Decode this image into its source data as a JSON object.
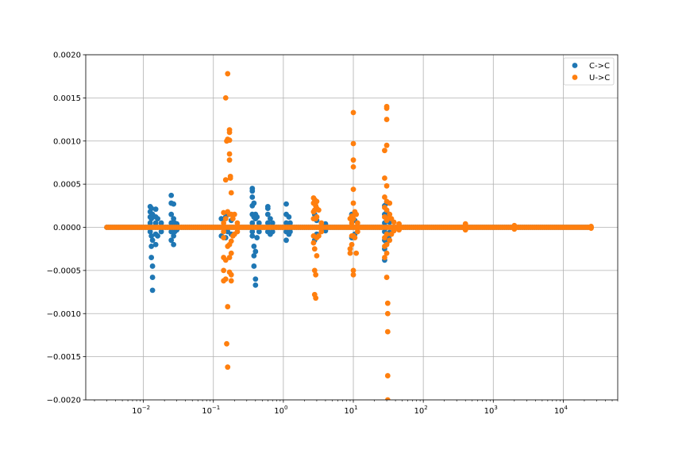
{
  "chart_data": {
    "type": "scatter",
    "title": "",
    "xlabel": "",
    "ylabel": "",
    "xscale": "log",
    "xlim": [
      0.0015,
      60000
    ],
    "ylim": [
      -0.002,
      0.002
    ],
    "grid": true,
    "legend_position": "top-right",
    "x_ticks": [
      {
        "value": 0.01,
        "base": "10",
        "exp": "−2"
      },
      {
        "value": 0.1,
        "base": "10",
        "exp": "−1"
      },
      {
        "value": 1,
        "base": "10",
        "exp": "0"
      },
      {
        "value": 10,
        "base": "10",
        "exp": "1"
      },
      {
        "value": 100,
        "base": "10",
        "exp": "2"
      },
      {
        "value": 1000,
        "base": "10",
        "exp": "3"
      },
      {
        "value": 10000,
        "base": "10",
        "exp": "4"
      }
    ],
    "y_ticks": [
      {
        "value": 0.002,
        "label": "0.0020"
      },
      {
        "value": 0.0015,
        "label": "0.0015"
      },
      {
        "value": 0.001,
        "label": "0.0010"
      },
      {
        "value": 0.0005,
        "label": "0.0005"
      },
      {
        "value": 0,
        "label": "0.0000"
      },
      {
        "value": -0.0005,
        "label": "−0.0005"
      },
      {
        "value": -0.001,
        "label": "−0.0010"
      },
      {
        "value": -0.0015,
        "label": "−0.0015"
      },
      {
        "value": -0.002,
        "label": "−0.0020"
      }
    ],
    "series": [
      {
        "name": "C->C",
        "color": "#1f77b4",
        "baseline_x_range": [
          0.003,
          25000
        ],
        "points": [
          [
            0.0125,
            0.00024
          ],
          [
            0.0125,
            0.00018
          ],
          [
            0.0125,
            0.00012
          ],
          [
            0.0125,
            5e-05
          ],
          [
            0.0125,
            -5e-05
          ],
          [
            0.013,
            0.00022
          ],
          [
            0.013,
            0.0001
          ],
          [
            0.013,
            -0.0001
          ],
          [
            0.013,
            -0.00022
          ],
          [
            0.013,
            -0.00035
          ],
          [
            0.0135,
            -0.00045
          ],
          [
            0.0135,
            -0.00058
          ],
          [
            0.0135,
            -0.00073
          ],
          [
            0.0135,
            -0.00015
          ],
          [
            0.0135,
            0.00015
          ],
          [
            0.015,
            0.00021
          ],
          [
            0.015,
            0.00012
          ],
          [
            0.015,
            5e-05
          ],
          [
            0.015,
            -8e-05
          ],
          [
            0.015,
            -0.0002
          ],
          [
            0.016,
            0.0001
          ],
          [
            0.016,
            -0.0001
          ],
          [
            0.018,
            5e-05
          ],
          [
            0.018,
            -5e-05
          ],
          [
            0.025,
            0.00037
          ],
          [
            0.025,
            0.00028
          ],
          [
            0.025,
            0.00015
          ],
          [
            0.025,
            5e-05
          ],
          [
            0.025,
            -5e-05
          ],
          [
            0.025,
            -0.00015
          ],
          [
            0.027,
            0.00027
          ],
          [
            0.027,
            0.0001
          ],
          [
            0.027,
            -0.0001
          ],
          [
            0.027,
            -0.0002
          ],
          [
            0.028,
            5e-05
          ],
          [
            0.028,
            -5e-05
          ],
          [
            0.03,
            4e-05
          ],
          [
            0.03,
            -3e-05
          ],
          [
            0.13,
            0.0001
          ],
          [
            0.13,
            -0.0001
          ],
          [
            0.15,
            0.00012
          ],
          [
            0.15,
            -0.00012
          ],
          [
            0.16,
            0.00015
          ],
          [
            0.16,
            -5e-05
          ],
          [
            0.18,
            8e-05
          ],
          [
            0.18,
            -8e-05
          ],
          [
            0.36,
            0.00045
          ],
          [
            0.36,
            0.00042
          ],
          [
            0.36,
            0.00035
          ],
          [
            0.36,
            0.00025
          ],
          [
            0.36,
            0.00015
          ],
          [
            0.36,
            5e-05
          ],
          [
            0.36,
            -5e-05
          ],
          [
            0.36,
            -0.0001
          ],
          [
            0.38,
            0.00028
          ],
          [
            0.38,
            0.00012
          ],
          [
            0.38,
            -0.00022
          ],
          [
            0.38,
            -0.00033
          ],
          [
            0.38,
            -0.00045
          ],
          [
            0.4,
            0.00015
          ],
          [
            0.4,
            0.0001
          ],
          [
            0.4,
            -0.0006
          ],
          [
            0.4,
            -0.00067
          ],
          [
            0.4,
            -0.00028
          ],
          [
            0.42,
            0.00012
          ],
          [
            0.42,
            -0.00012
          ],
          [
            0.45,
            5e-05
          ],
          [
            0.45,
            -5e-05
          ],
          [
            0.6,
            0.00024
          ],
          [
            0.6,
            0.00022
          ],
          [
            0.6,
            0.00015
          ],
          [
            0.6,
            5e-05
          ],
          [
            0.6,
            -5e-05
          ],
          [
            0.65,
            0.0001
          ],
          [
            0.65,
            -8e-05
          ],
          [
            0.7,
            5e-05
          ],
          [
            0.7,
            -5e-05
          ],
          [
            1.1,
            0.00027
          ],
          [
            1.1,
            0.00015
          ],
          [
            1.1,
            5e-05
          ],
          [
            1.1,
            -5e-05
          ],
          [
            1.1,
            -0.00015
          ],
          [
            1.2,
            0.00012
          ],
          [
            1.2,
            -8e-05
          ],
          [
            1.25,
            5e-05
          ],
          [
            1.25,
            -5e-05
          ],
          [
            2.8,
            0.00015
          ],
          [
            2.8,
            -0.00015
          ],
          [
            3.0,
            8e-05
          ],
          [
            3.0,
            -8e-05
          ],
          [
            4.0,
            4e-05
          ],
          [
            4.0,
            -4e-05
          ],
          [
            9.5,
            0.00015
          ],
          [
            9.5,
            0.0001
          ],
          [
            9.5,
            -0.00012
          ],
          [
            10.5,
            8e-05
          ],
          [
            10.5,
            -8e-05
          ],
          [
            28,
            0.00025
          ],
          [
            28,
            0.00015
          ],
          [
            28,
            5e-05
          ],
          [
            28,
            -5e-05
          ],
          [
            28,
            -0.00015
          ],
          [
            28,
            -0.00025
          ],
          [
            28,
            -0.00038
          ],
          [
            30,
            0.00028
          ],
          [
            30,
            0.00018
          ],
          [
            30,
            0.0001
          ],
          [
            30,
            -0.0001
          ],
          [
            30,
            -0.00018
          ],
          [
            32,
            0.00015
          ],
          [
            32,
            -0.00012
          ],
          [
            33,
            6e-05
          ],
          [
            33,
            -6e-05
          ]
        ]
      },
      {
        "name": "U->C",
        "color": "#ff7f0e",
        "baseline_x_range": [
          0.003,
          25000
        ],
        "points": [
          [
            0.14,
            0.00017
          ],
          [
            0.14,
            5e-05
          ],
          [
            0.14,
            -5e-05
          ],
          [
            0.14,
            -0.00012
          ],
          [
            0.14,
            -0.00035
          ],
          [
            0.14,
            -0.0005
          ],
          [
            0.14,
            -0.00062
          ],
          [
            0.15,
            0.00055
          ],
          [
            0.15,
            0.0001
          ],
          [
            0.15,
            0.0015
          ],
          [
            0.15,
            -0.00038
          ],
          [
            0.15,
            -0.0006
          ],
          [
            0.155,
            0.001
          ],
          [
            0.155,
            -0.00135
          ],
          [
            0.16,
            0.00178
          ],
          [
            0.16,
            0.00102
          ],
          [
            0.16,
            0.00018
          ],
          [
            0.16,
            -0.00022
          ],
          [
            0.16,
            -0.00092
          ],
          [
            0.16,
            -0.00162
          ],
          [
            0.17,
            0.00113
          ],
          [
            0.17,
            0.0011
          ],
          [
            0.17,
            0.00101
          ],
          [
            0.17,
            0.00085
          ],
          [
            0.17,
            0.00078
          ],
          [
            0.17,
            0.00015
          ],
          [
            0.17,
            -0.0002
          ],
          [
            0.17,
            -0.00035
          ],
          [
            0.17,
            -0.00052
          ],
          [
            0.175,
            0.00059
          ],
          [
            0.175,
            0.00057
          ],
          [
            0.18,
            0.0004
          ],
          [
            0.18,
            0.00015
          ],
          [
            0.18,
            -0.00016
          ],
          [
            0.18,
            -0.0003
          ],
          [
            0.18,
            -0.00055
          ],
          [
            0.18,
            -0.00062
          ],
          [
            0.19,
            0.0001
          ],
          [
            0.19,
            -0.0001
          ],
          [
            0.2,
            0.00015
          ],
          [
            0.2,
            -8e-05
          ],
          [
            0.22,
            5e-05
          ],
          [
            0.22,
            -5e-05
          ],
          [
            2.7,
            0.00034
          ],
          [
            2.7,
            0.00028
          ],
          [
            2.7,
            0.00018
          ],
          [
            2.7,
            0.0001
          ],
          [
            2.7,
            -0.0001
          ],
          [
            2.7,
            -0.00018
          ],
          [
            2.8,
            0.00032
          ],
          [
            2.8,
            0.0002
          ],
          [
            2.8,
            -0.00025
          ],
          [
            2.8,
            -0.0005
          ],
          [
            2.8,
            -0.00078
          ],
          [
            2.9,
            0.00025
          ],
          [
            2.9,
            0.0001
          ],
          [
            2.9,
            -0.00082
          ],
          [
            2.9,
            -0.00055
          ],
          [
            3.0,
            0.0003
          ],
          [
            3.0,
            0.00022
          ],
          [
            3.0,
            0.00012
          ],
          [
            3.0,
            -0.00012
          ],
          [
            3.0,
            -0.00033
          ],
          [
            3.2,
            0.0002
          ],
          [
            3.2,
            -0.0001
          ],
          [
            3.5,
            5e-05
          ],
          [
            3.5,
            -5e-05
          ],
          [
            9.0,
            0.0001
          ],
          [
            9.0,
            -0.00025
          ],
          [
            9.0,
            -0.0003
          ],
          [
            9.5,
            0.00013
          ],
          [
            9.5,
            5e-05
          ],
          [
            9.5,
            -0.0001
          ],
          [
            9.5,
            -0.0002
          ],
          [
            10.0,
            0.00133
          ],
          [
            10.0,
            0.00097
          ],
          [
            10.0,
            0.00078
          ],
          [
            10.0,
            0.0007
          ],
          [
            10.0,
            0.00044
          ],
          [
            10.0,
            0.00028
          ],
          [
            10.0,
            0.0001
          ],
          [
            10.0,
            -0.0001
          ],
          [
            10.0,
            -0.0005
          ],
          [
            10.0,
            -0.00055
          ],
          [
            10.5,
            0.00018
          ],
          [
            10.5,
            -0.00012
          ],
          [
            11,
            0.00015
          ],
          [
            11,
            -0.0003
          ],
          [
            11.5,
            5e-05
          ],
          [
            11.5,
            -5e-05
          ],
          [
            28,
            0.00089
          ],
          [
            28,
            0.00057
          ],
          [
            28,
            0.00035
          ],
          [
            28,
            0.00023
          ],
          [
            28,
            0.00012
          ],
          [
            28,
            -0.00012
          ],
          [
            28,
            -0.00022
          ],
          [
            28,
            -0.00035
          ],
          [
            30,
            0.0014
          ],
          [
            30,
            0.00138
          ],
          [
            30,
            0.00125
          ],
          [
            30,
            0.00095
          ],
          [
            30,
            0.00048
          ],
          [
            30,
            0.0003
          ],
          [
            30,
            0.0002
          ],
          [
            30,
            8e-05
          ],
          [
            30,
            -8e-05
          ],
          [
            30,
            -0.0002
          ],
          [
            30,
            -0.0003
          ],
          [
            30,
            -0.00058
          ],
          [
            31,
            0.0001
          ],
          [
            31,
            -0.00088
          ],
          [
            31,
            -0.001
          ],
          [
            31,
            -0.00121
          ],
          [
            31,
            -0.00172
          ],
          [
            31,
            -0.002
          ],
          [
            33,
            0.00028
          ],
          [
            33,
            0.00015
          ],
          [
            33,
            -0.00015
          ],
          [
            35,
            0.0001
          ],
          [
            35,
            -8e-05
          ],
          [
            38,
            6e-05
          ],
          [
            38,
            -4e-05
          ],
          [
            45,
            4e-05
          ],
          [
            45,
            -3e-05
          ],
          [
            400,
            4e-05
          ],
          [
            400,
            -3e-05
          ],
          [
            2000,
            2e-05
          ],
          [
            2000,
            -2e-05
          ],
          [
            25000,
            1e-05
          ],
          [
            25000,
            -1e-05
          ]
        ]
      }
    ]
  }
}
